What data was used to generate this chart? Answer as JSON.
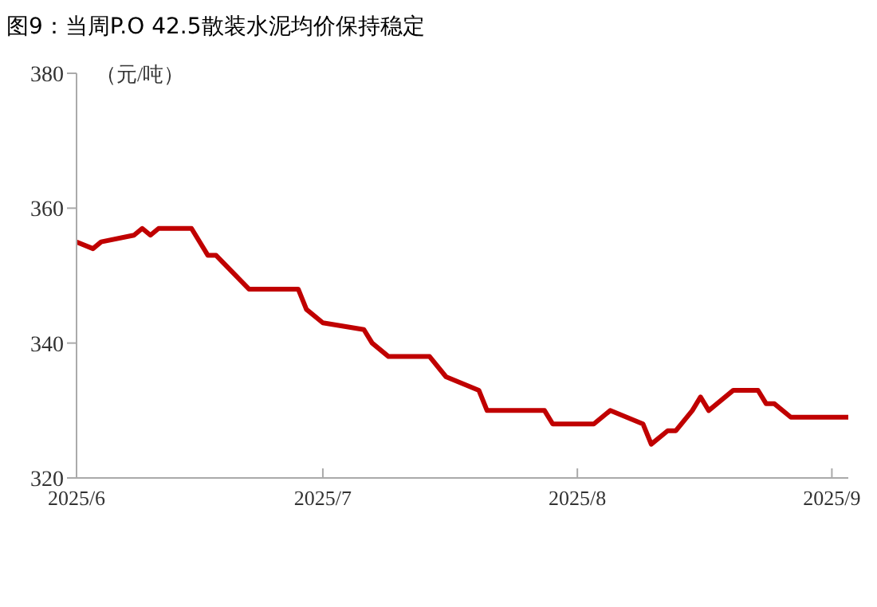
{
  "chart_data": {
    "type": "line",
    "title": "图9：当周P.O 42.5散装水泥均价保持稳定",
    "ylabel": "（元/吨）",
    "x": [
      "2025-06-01",
      "2025-06-03",
      "2025-06-04",
      "2025-06-08",
      "2025-06-09",
      "2025-06-10",
      "2025-06-11",
      "2025-06-15",
      "2025-06-17",
      "2025-06-18",
      "2025-06-22",
      "2025-06-28",
      "2025-06-29",
      "2025-07-01",
      "2025-07-06",
      "2025-07-07",
      "2025-07-09",
      "2025-07-14",
      "2025-07-16",
      "2025-07-20",
      "2025-07-21",
      "2025-07-28",
      "2025-07-29",
      "2025-08-03",
      "2025-08-05",
      "2025-08-07",
      "2025-08-09",
      "2025-08-10",
      "2025-08-12",
      "2025-08-13",
      "2025-08-15",
      "2025-08-16",
      "2025-08-17",
      "2025-08-20",
      "2025-08-23",
      "2025-08-24",
      "2025-08-25",
      "2025-08-27",
      "2025-09-03"
    ],
    "series": [
      {
        "color": "#c00000",
        "values": [
          355,
          354,
          355,
          356,
          357,
          356,
          357,
          357,
          353,
          353,
          348,
          348,
          345,
          343,
          342,
          340,
          338,
          338,
          335,
          333,
          330,
          330,
          328,
          328,
          330,
          329,
          328,
          325,
          327,
          327,
          330,
          332,
          330,
          333,
          333,
          331,
          331,
          329,
          329
        ]
      }
    ],
    "xlim": [
      "2025-06-01",
      "2025-09-03"
    ],
    "xticks": [
      {
        "value": "2025-06-01",
        "label": "2025/6"
      },
      {
        "value": "2025-07-01",
        "label": "2025/7"
      },
      {
        "value": "2025-08-01",
        "label": "2025/8"
      },
      {
        "value": "2025-09-01",
        "label": "2025/9"
      }
    ],
    "ylim": [
      320,
      380
    ],
    "yticks": [
      320,
      340,
      360,
      380
    ],
    "marker": "none",
    "line_style": "solid"
  }
}
